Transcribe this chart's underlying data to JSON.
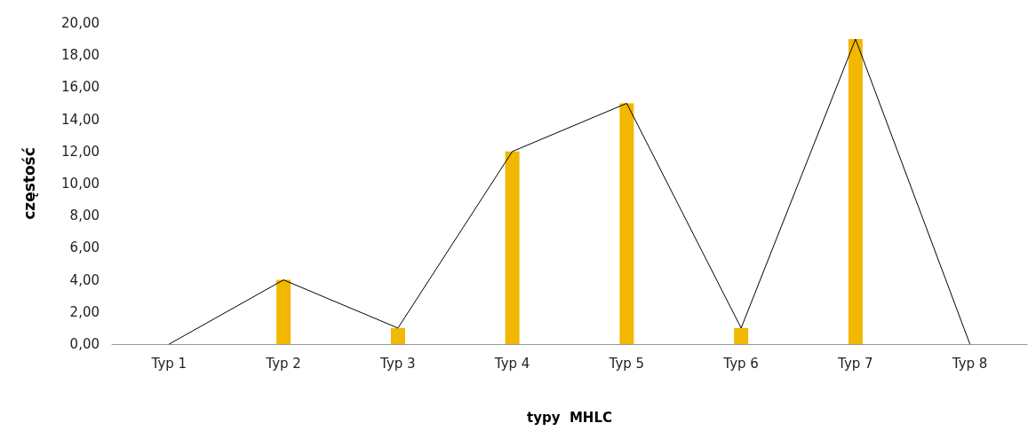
{
  "chart_data": {
    "type": "bar",
    "xlabel": "typy  MHLC",
    "ylabel": "częstość",
    "categories": [
      "Typ 1",
      "Typ 2",
      "Typ 3",
      "Typ 4",
      "Typ 5",
      "Typ 6",
      "Typ 7",
      "Typ 8"
    ],
    "series": [
      {
        "color": "#f2b700",
        "values": [
          0,
          4,
          1,
          12,
          15,
          1,
          19,
          0
        ]
      },
      {
        "type": "line",
        "color": "#000000",
        "values": [
          0,
          4,
          1,
          12,
          15,
          1,
          19,
          0
        ]
      }
    ],
    "ylim": [
      0,
      20
    ],
    "yticks": [
      {
        "value": 0,
        "label": "0,00"
      },
      {
        "value": 2,
        "label": "2,00"
      },
      {
        "value": 4,
        "label": "4,00"
      },
      {
        "value": 6,
        "label": "6,00"
      },
      {
        "value": 8,
        "label": "8,00"
      },
      {
        "value": 10,
        "label": "10,00"
      },
      {
        "value": 12,
        "label": "12,00"
      },
      {
        "value": 14,
        "label": "14,00"
      },
      {
        "value": 16,
        "label": "16,00"
      },
      {
        "value": 18,
        "label": "18,00"
      },
      {
        "value": 20,
        "label": "20,00"
      }
    ],
    "grid": false,
    "marker": "none",
    "line_style": "solid"
  }
}
